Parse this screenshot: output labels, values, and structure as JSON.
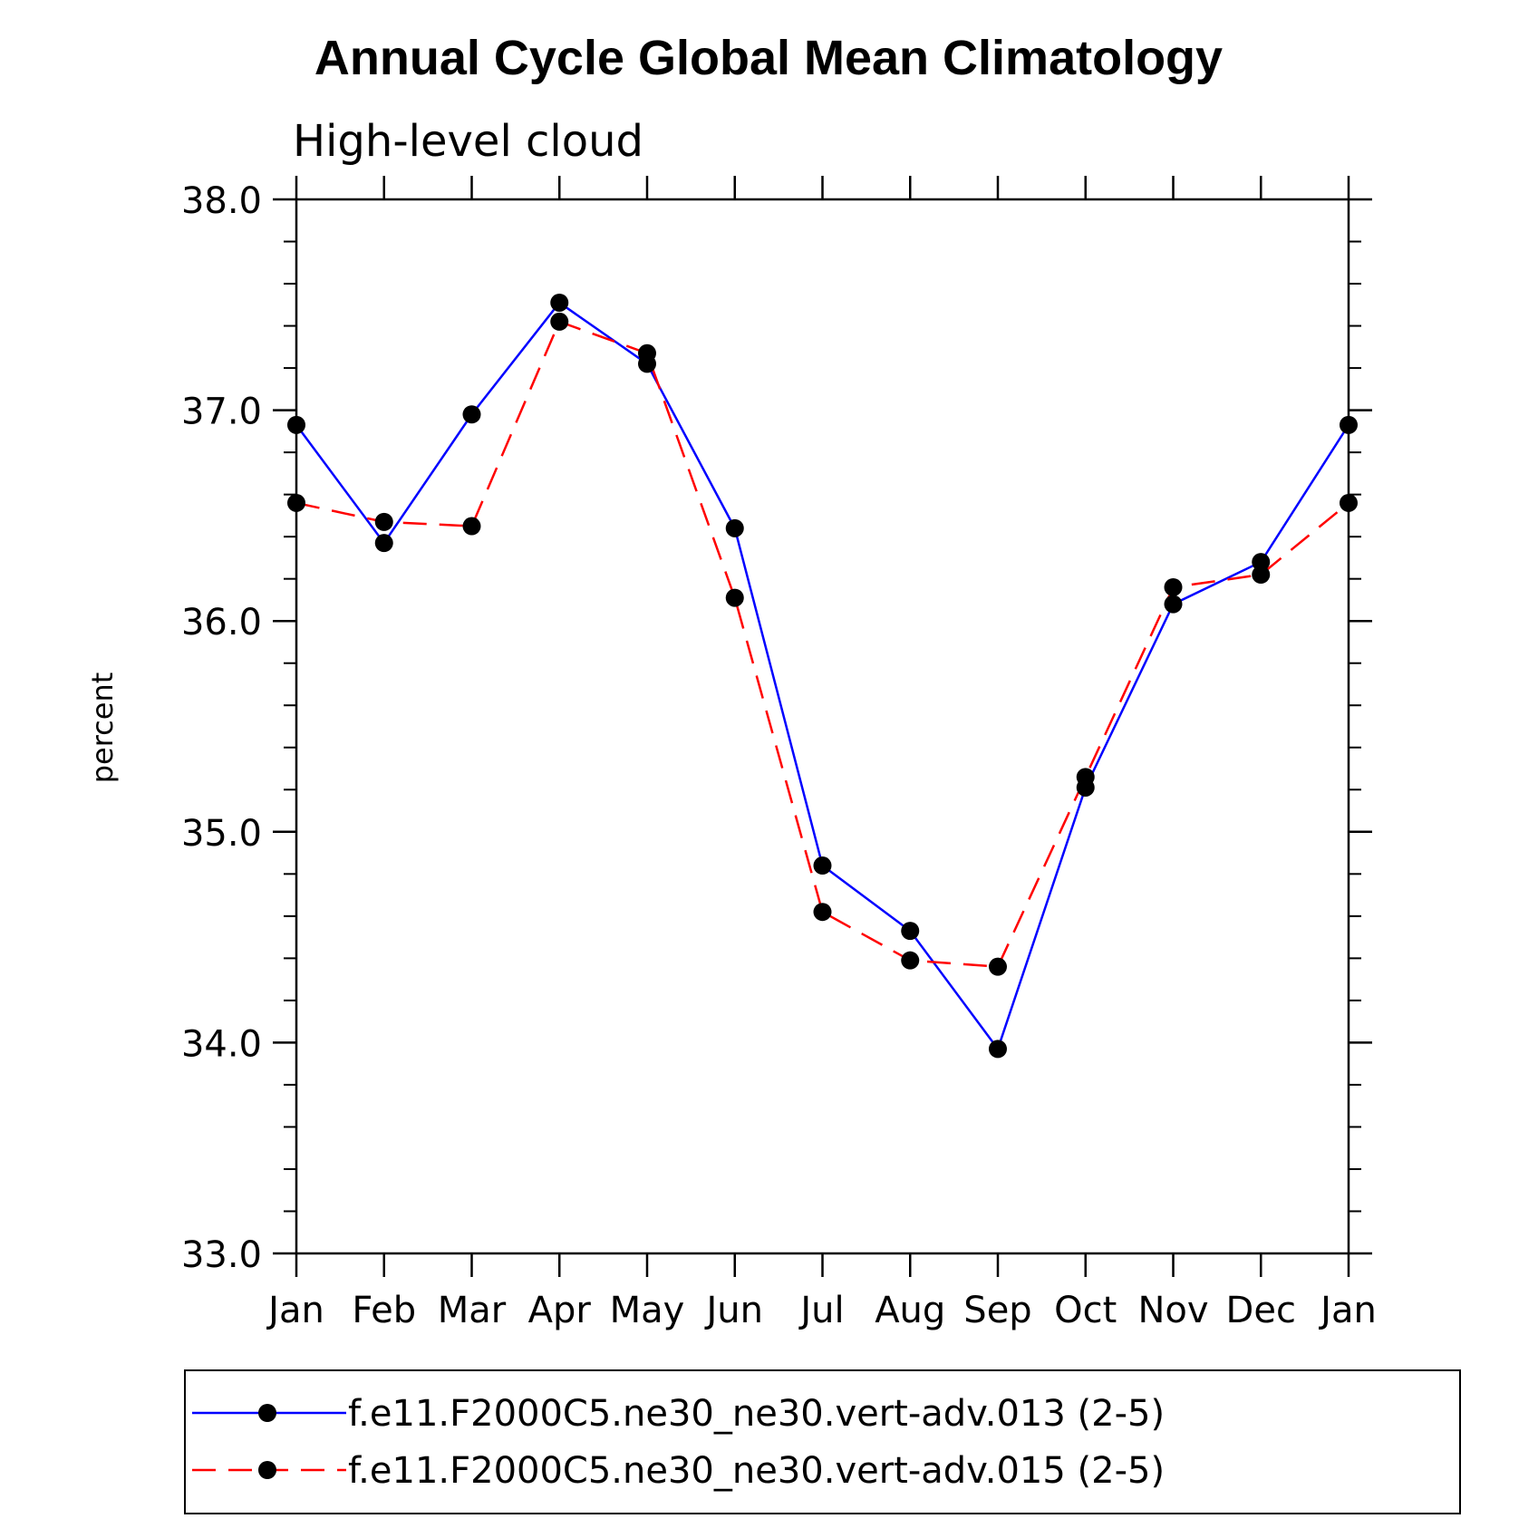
{
  "chart_data": {
    "type": "line",
    "title": "Annual Cycle Global Mean Climatology",
    "subtitle": "High-level cloud",
    "xlabel": "",
    "ylabel": "percent",
    "ylim": [
      33.0,
      38.0
    ],
    "yticks_major": [
      "33.0",
      "34.0",
      "35.0",
      "36.0",
      "37.0",
      "38.0"
    ],
    "yminor_step": 0.2,
    "categories": [
      "Jan",
      "Feb",
      "Mar",
      "Apr",
      "May",
      "Jun",
      "Jul",
      "Aug",
      "Sep",
      "Oct",
      "Nov",
      "Dec",
      "Jan"
    ],
    "series": [
      {
        "name": "f.e11.F2000C5.ne30_ne30.vert-adv.013 (2-5)",
        "color": "#0000ff",
        "dash": "solid",
        "values": [
          36.93,
          36.37,
          36.98,
          37.51,
          37.22,
          36.44,
          34.84,
          34.53,
          33.97,
          35.21,
          36.08,
          36.28,
          36.93
        ]
      },
      {
        "name": "f.e11.F2000C5.ne30_ne30.vert-adv.015 (2-5)",
        "color": "#ff0000",
        "dash": "dashed",
        "values": [
          36.56,
          36.47,
          36.45,
          37.42,
          37.27,
          36.11,
          34.62,
          34.39,
          34.36,
          35.26,
          36.16,
          36.22,
          36.56
        ]
      }
    ],
    "marker": "filled-circle",
    "marker_color": "#000000",
    "legend_position": "bottom"
  }
}
